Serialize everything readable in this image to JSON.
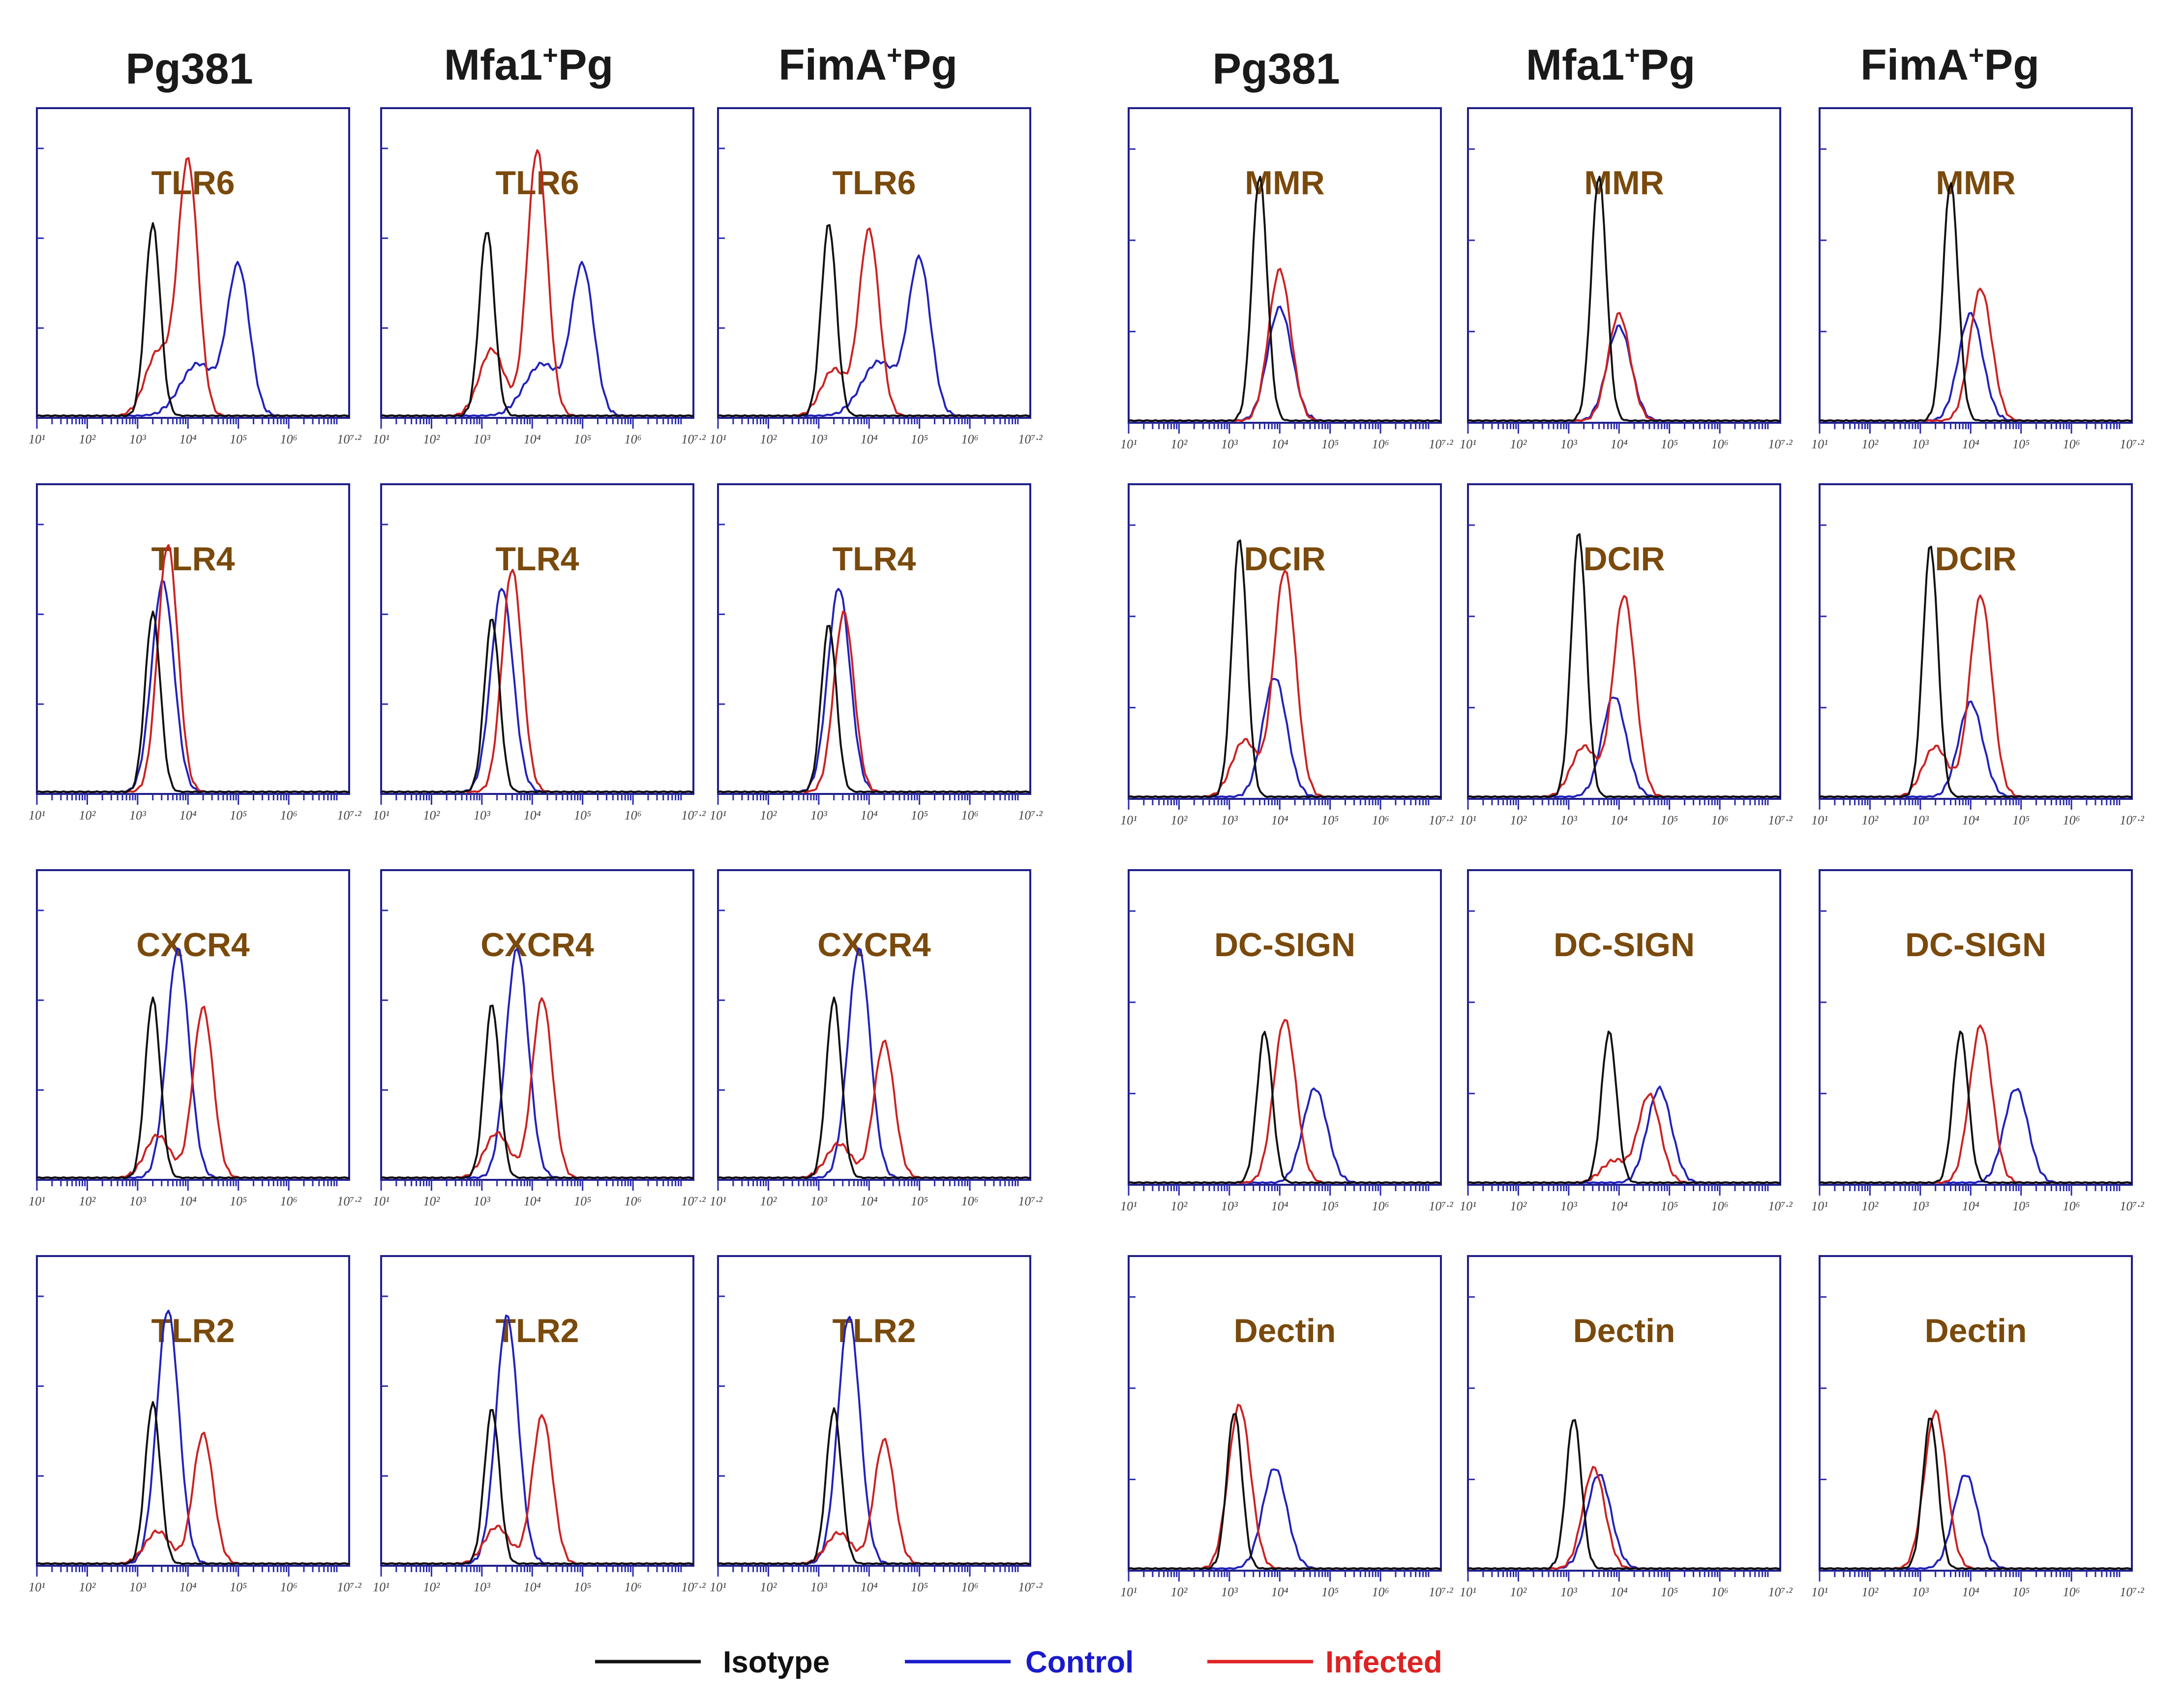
{
  "columns": [
    "Pg381",
    "Mfa1+Pg",
    "FimA+Pg",
    "Pg381",
    "Mfa1+Pg",
    "FimA+Pg"
  ],
  "legend": [
    {
      "label": "Isotype",
      "color": "#111111"
    },
    {
      "label": "Control",
      "color": "#1a1acc"
    },
    {
      "label": "Infected",
      "color": "#dd2222"
    }
  ],
  "colors": {
    "isotype": "#111111",
    "control": "#2222bb",
    "infected": "#cc2222",
    "marker_label": "#7a4a0c",
    "frame": "#1f1f8a"
  },
  "chart_data": {
    "type": "histogram-grid",
    "x_scale": "log10",
    "x_tick_labels": [
      "10^1",
      "10^2",
      "10^3",
      "10^4",
      "10^5",
      "10^6",
      "10^7.2"
    ],
    "xlim": [
      1,
      7.2
    ],
    "series_names": [
      "Isotype",
      "Control",
      "Infected"
    ],
    "panels": [
      {
        "col": 0,
        "row": 0,
        "marker": "TLR6",
        "peaks": {
          "isotype": [
            3.3,
            0.62
          ],
          "control": [
            5.0,
            0.48
          ],
          "infected": [
            4.0,
            0.82
          ]
        }
      },
      {
        "col": 1,
        "row": 0,
        "marker": "TLR6",
        "peaks": {
          "isotype": [
            3.1,
            0.6
          ],
          "control": [
            5.0,
            0.48
          ],
          "infected": [
            4.1,
            0.86
          ]
        }
      },
      {
        "col": 2,
        "row": 0,
        "marker": "TLR6",
        "peaks": {
          "isotype": [
            3.2,
            0.62
          ],
          "control": [
            5.0,
            0.5
          ],
          "infected": [
            4.0,
            0.6
          ]
        }
      },
      {
        "col": 0,
        "row": 1,
        "marker": "TLR4",
        "peaks": {
          "isotype": [
            3.3,
            0.58
          ],
          "control": [
            3.5,
            0.68
          ],
          "infected": [
            3.6,
            0.8
          ]
        }
      },
      {
        "col": 1,
        "row": 1,
        "marker": "TLR4",
        "peaks": {
          "isotype": [
            3.2,
            0.56
          ],
          "control": [
            3.4,
            0.66
          ],
          "infected": [
            3.6,
            0.72
          ]
        }
      },
      {
        "col": 2,
        "row": 1,
        "marker": "TLR4",
        "peaks": {
          "isotype": [
            3.2,
            0.54
          ],
          "control": [
            3.4,
            0.66
          ],
          "infected": [
            3.5,
            0.58
          ]
        }
      },
      {
        "col": 0,
        "row": 2,
        "marker": "CXCR4",
        "peaks": {
          "isotype": [
            3.3,
            0.58
          ],
          "control": [
            3.8,
            0.74
          ],
          "infected": [
            4.3,
            0.55
          ]
        }
      },
      {
        "col": 1,
        "row": 2,
        "marker": "CXCR4",
        "peaks": {
          "isotype": [
            3.2,
            0.56
          ],
          "control": [
            3.7,
            0.74
          ],
          "infected": [
            4.2,
            0.58
          ]
        }
      },
      {
        "col": 2,
        "row": 2,
        "marker": "CXCR4",
        "peaks": {
          "isotype": [
            3.3,
            0.58
          ],
          "control": [
            3.8,
            0.74
          ],
          "infected": [
            4.3,
            0.44
          ]
        }
      },
      {
        "col": 0,
        "row": 3,
        "marker": "TLR2",
        "peaks": {
          "isotype": [
            3.3,
            0.52
          ],
          "control": [
            3.6,
            0.82
          ],
          "infected": [
            4.3,
            0.42
          ]
        }
      },
      {
        "col": 1,
        "row": 3,
        "marker": "TLR2",
        "peaks": {
          "isotype": [
            3.2,
            0.5
          ],
          "control": [
            3.5,
            0.8
          ],
          "infected": [
            4.2,
            0.48
          ]
        }
      },
      {
        "col": 2,
        "row": 3,
        "marker": "TLR2",
        "peaks": {
          "isotype": [
            3.3,
            0.5
          ],
          "control": [
            3.6,
            0.8
          ],
          "infected": [
            4.3,
            0.4
          ]
        }
      },
      {
        "col": 3,
        "row": 0,
        "marker": "MMR",
        "peaks": {
          "isotype": [
            3.6,
            0.78
          ],
          "control": [
            4.0,
            0.36
          ],
          "infected": [
            4.0,
            0.48
          ]
        }
      },
      {
        "col": 4,
        "row": 0,
        "marker": "MMR",
        "peaks": {
          "isotype": [
            3.6,
            0.78
          ],
          "control": [
            4.0,
            0.3
          ],
          "infected": [
            4.0,
            0.34
          ]
        }
      },
      {
        "col": 5,
        "row": 0,
        "marker": "MMR",
        "peaks": {
          "isotype": [
            3.6,
            0.76
          ],
          "control": [
            4.0,
            0.34
          ],
          "infected": [
            4.2,
            0.42
          ]
        }
      },
      {
        "col": 3,
        "row": 1,
        "marker": "DCIR",
        "peaks": {
          "isotype": [
            3.2,
            0.82
          ],
          "control": [
            3.9,
            0.38
          ],
          "infected": [
            4.1,
            0.72
          ]
        }
      },
      {
        "col": 4,
        "row": 1,
        "marker": "DCIR",
        "peaks": {
          "isotype": [
            3.2,
            0.84
          ],
          "control": [
            3.9,
            0.32
          ],
          "infected": [
            4.1,
            0.64
          ]
        }
      },
      {
        "col": 5,
        "row": 1,
        "marker": "DCIR",
        "peaks": {
          "isotype": [
            3.2,
            0.8
          ],
          "control": [
            4.0,
            0.3
          ],
          "infected": [
            4.2,
            0.64
          ]
        }
      },
      {
        "col": 3,
        "row": 2,
        "marker": "DC-SIGN",
        "peaks": {
          "isotype": [
            3.7,
            0.48
          ],
          "control": [
            4.7,
            0.3
          ],
          "infected": [
            4.1,
            0.52
          ]
        }
      },
      {
        "col": 4,
        "row": 2,
        "marker": "DC-SIGN",
        "peaks": {
          "isotype": [
            3.8,
            0.48
          ],
          "control": [
            4.8,
            0.3
          ],
          "infected": [
            4.6,
            0.28
          ]
        }
      },
      {
        "col": 5,
        "row": 2,
        "marker": "DC-SIGN",
        "peaks": {
          "isotype": [
            3.8,
            0.48
          ],
          "control": [
            4.9,
            0.3
          ],
          "infected": [
            4.2,
            0.5
          ]
        }
      },
      {
        "col": 3,
        "row": 3,
        "marker": "Dectin",
        "peaks": {
          "isotype": [
            3.1,
            0.5
          ],
          "control": [
            3.9,
            0.32
          ],
          "infected": [
            3.2,
            0.52
          ]
        }
      },
      {
        "col": 4,
        "row": 3,
        "marker": "Dectin",
        "peaks": {
          "isotype": [
            3.1,
            0.48
          ],
          "control": [
            3.6,
            0.3
          ],
          "infected": [
            3.5,
            0.32
          ]
        }
      },
      {
        "col": 5,
        "row": 3,
        "marker": "Dectin",
        "peaks": {
          "isotype": [
            3.2,
            0.48
          ],
          "control": [
            3.9,
            0.3
          ],
          "infected": [
            3.3,
            0.5
          ]
        }
      }
    ]
  }
}
